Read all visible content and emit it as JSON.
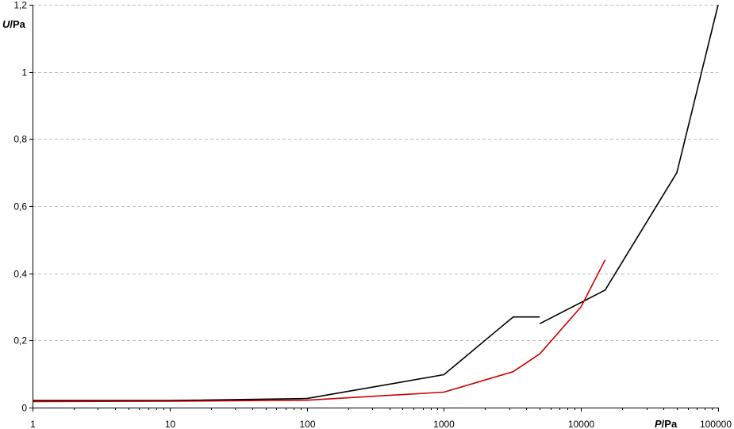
{
  "chart_data": {
    "type": "line",
    "xscale": "log",
    "xlim": [
      1,
      100000
    ],
    "ylim": [
      0,
      1.2
    ],
    "x_ticks": [
      1,
      10,
      100,
      1000,
      10000,
      100000
    ],
    "x_tick_labels": [
      "1",
      "10",
      "100",
      "1000",
      "10000",
      "100000"
    ],
    "y_ticks": [
      0,
      0.2,
      0.4,
      0.6,
      0.8,
      1,
      1.2
    ],
    "y_tick_labels": [
      "0",
      "0,2",
      "0,4",
      "0,6",
      "0,8",
      "1",
      "1,2"
    ],
    "xlabel": {
      "symbol": "P",
      "unit": "/Pa"
    },
    "ylabel": {
      "symbol": "U",
      "unit": "/Pa"
    },
    "grid": "horizontal-dashed",
    "series": [
      {
        "color": "#000000",
        "segments": [
          [
            [
              1,
              0.021
            ],
            [
              10,
              0.021
            ],
            [
              100,
              0.027
            ],
            [
              1000,
              0.098
            ],
            [
              3200,
              0.27
            ],
            [
              5000,
              0.27
            ]
          ],
          [
            [
              5000,
              0.25
            ],
            [
              15000,
              0.35
            ],
            [
              50000,
              0.7
            ],
            [
              100000,
              1.2
            ]
          ]
        ]
      },
      {
        "color": "#cc0000",
        "segments": [
          [
            [
              1,
              0.018
            ],
            [
              10,
              0.019
            ],
            [
              100,
              0.022
            ],
            [
              1000,
              0.046
            ],
            [
              3200,
              0.107
            ],
            [
              5000,
              0.16
            ],
            [
              10000,
              0.3
            ],
            [
              15000,
              0.44
            ]
          ]
        ]
      }
    ]
  }
}
